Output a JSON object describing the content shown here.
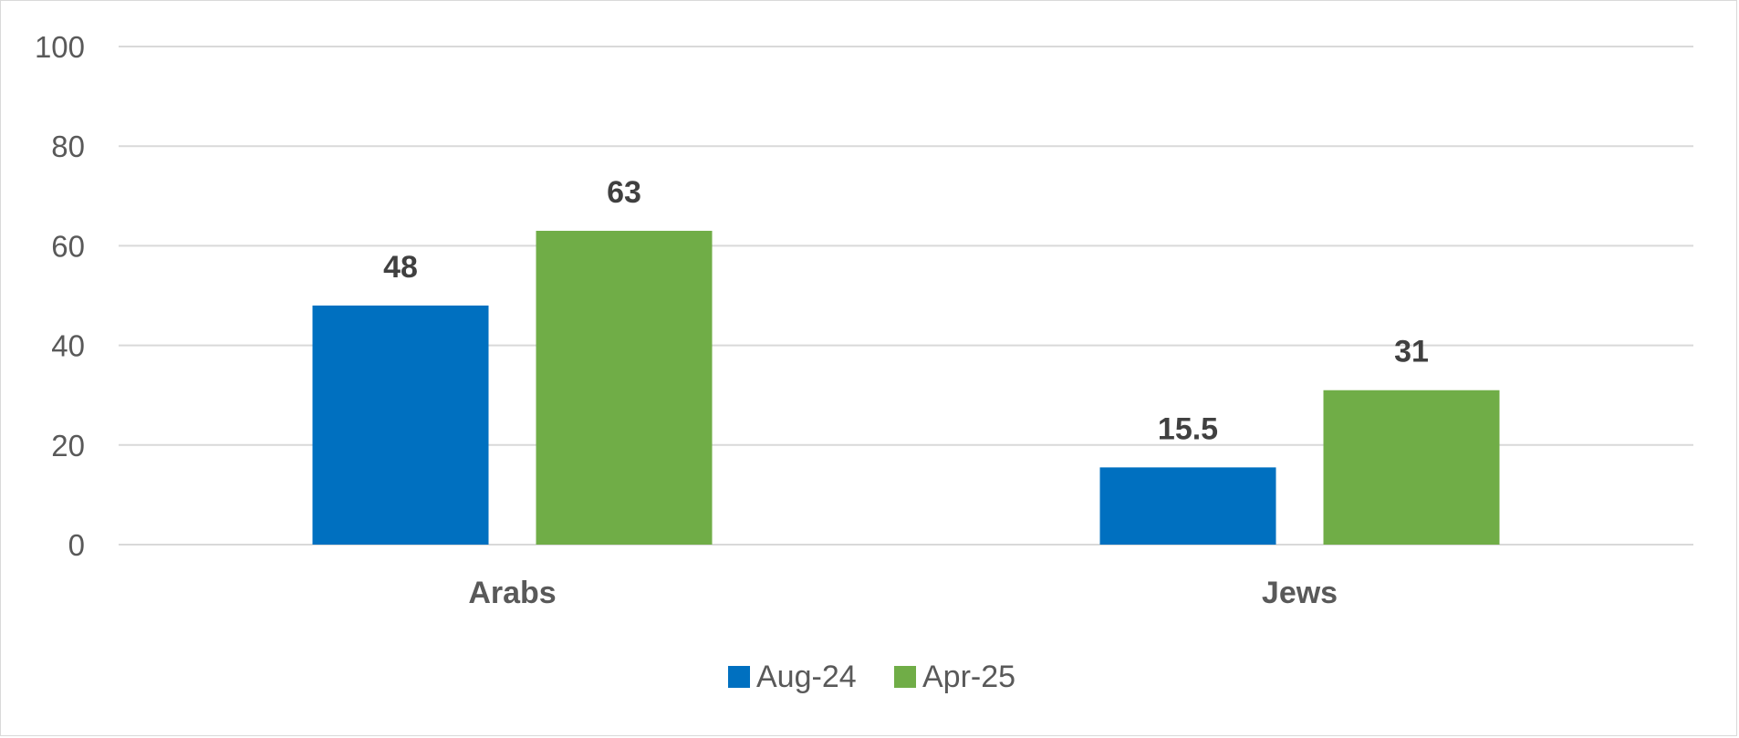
{
  "chart_data": {
    "type": "bar",
    "categories": [
      "Arabs",
      "Jews"
    ],
    "series": [
      {
        "name": "Aug-24",
        "values": [
          48,
          15.5
        ],
        "labels": [
          "48",
          "15.5"
        ],
        "color": "#0070c0"
      },
      {
        "name": "Apr-25",
        "values": [
          63,
          31
        ],
        "labels": [
          "63",
          "31"
        ],
        "color": "#70ad47"
      }
    ],
    "title": "",
    "xlabel": "",
    "ylabel": "",
    "ylim": [
      0,
      100
    ],
    "yticks": [
      0,
      20,
      40,
      60,
      80,
      100
    ],
    "ytick_labels": [
      "0",
      "20",
      "40",
      "60",
      "80",
      "100"
    ],
    "grid": true,
    "legend_position": "bottom"
  }
}
